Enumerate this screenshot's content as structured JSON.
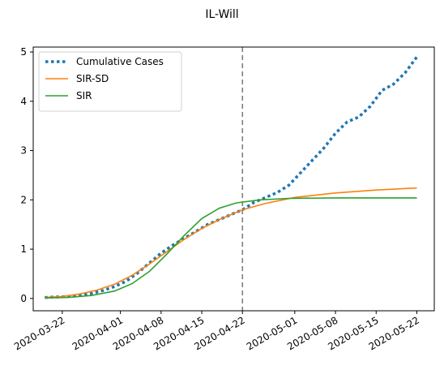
{
  "chart_data": {
    "type": "line",
    "title": "IL-Will",
    "xlabel": "",
    "ylabel": "",
    "x_range": [
      "2020-03-17",
      "2020-05-25"
    ],
    "ylim": [
      -0.25,
      5.1
    ],
    "x_ticks": [
      "2020-03-22",
      "2020-04-01",
      "2020-04-08",
      "2020-04-15",
      "2020-04-22",
      "2020-05-01",
      "2020-05-08",
      "2020-05-15",
      "2020-05-22"
    ],
    "y_ticks": [
      0,
      1,
      2,
      3,
      4,
      5
    ],
    "grid": false,
    "legend_position": "top-left",
    "vline": {
      "x": "2020-04-22",
      "style": "dashed",
      "color": "#7f7f7f"
    },
    "series": [
      {
        "name": "Cumulative Cases",
        "style": "dotted",
        "color": "#1f77b4",
        "points": [
          [
            "2020-03-19",
            0.02
          ],
          [
            "2020-03-21",
            0.03
          ],
          [
            "2020-03-23",
            0.04
          ],
          [
            "2020-03-25",
            0.06
          ],
          [
            "2020-03-27",
            0.1
          ],
          [
            "2020-03-29",
            0.16
          ],
          [
            "2020-03-31",
            0.24
          ],
          [
            "2020-04-02",
            0.35
          ],
          [
            "2020-04-04",
            0.52
          ],
          [
            "2020-04-06",
            0.72
          ],
          [
            "2020-04-08",
            0.92
          ],
          [
            "2020-04-10",
            1.08
          ],
          [
            "2020-04-12",
            1.22
          ],
          [
            "2020-04-14",
            1.36
          ],
          [
            "2020-04-16",
            1.5
          ],
          [
            "2020-04-18",
            1.6
          ],
          [
            "2020-04-20",
            1.7
          ],
          [
            "2020-04-22",
            1.8
          ],
          [
            "2020-04-24",
            1.95
          ],
          [
            "2020-04-26",
            2.05
          ],
          [
            "2020-04-28",
            2.15
          ],
          [
            "2020-04-30",
            2.3
          ],
          [
            "2020-05-02",
            2.55
          ],
          [
            "2020-05-04",
            2.8
          ],
          [
            "2020-05-06",
            3.05
          ],
          [
            "2020-05-08",
            3.35
          ],
          [
            "2020-05-10",
            3.58
          ],
          [
            "2020-05-12",
            3.68
          ],
          [
            "2020-05-14",
            3.9
          ],
          [
            "2020-05-16",
            4.22
          ],
          [
            "2020-05-18",
            4.35
          ],
          [
            "2020-05-20",
            4.58
          ],
          [
            "2020-05-22",
            4.9
          ]
        ]
      },
      {
        "name": "SIR-SD",
        "style": "solid",
        "color": "#ff7f0e",
        "points": [
          [
            "2020-03-19",
            0.02
          ],
          [
            "2020-03-22",
            0.04
          ],
          [
            "2020-03-25",
            0.09
          ],
          [
            "2020-03-28",
            0.17
          ],
          [
            "2020-03-31",
            0.29
          ],
          [
            "2020-04-03",
            0.47
          ],
          [
            "2020-04-06",
            0.7
          ],
          [
            "2020-04-09",
            0.95
          ],
          [
            "2020-04-12",
            1.2
          ],
          [
            "2020-04-15",
            1.42
          ],
          [
            "2020-04-18",
            1.6
          ],
          [
            "2020-04-22",
            1.8
          ],
          [
            "2020-04-26",
            1.93
          ],
          [
            "2020-05-01",
            2.05
          ],
          [
            "2020-05-08",
            2.14
          ],
          [
            "2020-05-15",
            2.2
          ],
          [
            "2020-05-22",
            2.24
          ]
        ]
      },
      {
        "name": "SIR",
        "style": "solid",
        "color": "#2ca02c",
        "points": [
          [
            "2020-03-19",
            0.01
          ],
          [
            "2020-03-23",
            0.02
          ],
          [
            "2020-03-27",
            0.06
          ],
          [
            "2020-03-31",
            0.15
          ],
          [
            "2020-04-03",
            0.3
          ],
          [
            "2020-04-06",
            0.55
          ],
          [
            "2020-04-09",
            0.9
          ],
          [
            "2020-04-12",
            1.28
          ],
          [
            "2020-04-15",
            1.62
          ],
          [
            "2020-04-18",
            1.83
          ],
          [
            "2020-04-21",
            1.94
          ],
          [
            "2020-04-25",
            2.0
          ],
          [
            "2020-04-30",
            2.03
          ],
          [
            "2020-05-08",
            2.04
          ],
          [
            "2020-05-15",
            2.04
          ],
          [
            "2020-05-22",
            2.04
          ]
        ]
      }
    ]
  }
}
